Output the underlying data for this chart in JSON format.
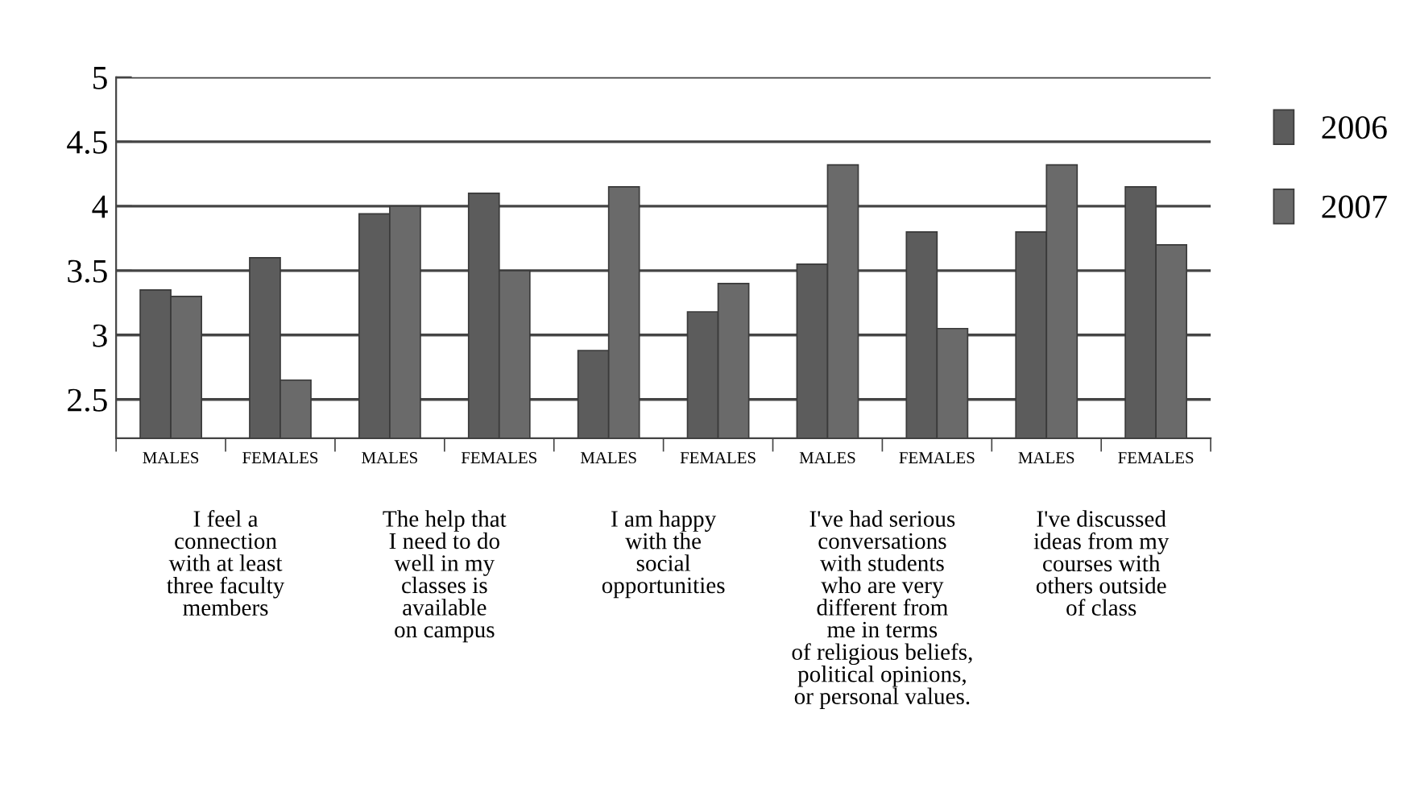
{
  "chart_data": {
    "type": "bar",
    "categories": [
      "MALES",
      "FEMALES",
      "MALES",
      "FEMALES",
      "MALES",
      "FEMALES",
      "MALES",
      "FEMALES",
      "MALES",
      "FEMALES"
    ],
    "series": [
      {
        "name": "2006",
        "color": "#5c5c5c",
        "values": [
          3.35,
          3.6,
          3.94,
          4.1,
          2.88,
          3.18,
          3.55,
          3.8,
          3.8,
          4.15
        ]
      },
      {
        "name": "2007",
        "color": "#6a6a6a",
        "values": [
          3.3,
          2.65,
          4.0,
          3.5,
          4.15,
          3.4,
          4.32,
          3.05,
          4.32,
          3.7
        ]
      }
    ],
    "ylim": [
      2.2,
      5
    ],
    "yticks": [
      2.5,
      3,
      3.5,
      4,
      4.5,
      5
    ],
    "grid": "y",
    "legend": "right",
    "annotations": [
      "I feel a\nconnection\nwith at least\nthree faculty\nmembers",
      "The help that\nI need to do\nwell in my\nclasses is\navailable\non campus",
      "I am happy\nwith the\nsocial\nopportunities",
      "I've had serious\nconversations\nwith students\nwho are very\ndifferent from\nme in terms\nof religious beliefs,\npolitical opinions,\nor personal values.",
      "I've discussed\nideas from my\ncourses with\nothers outside\nof class"
    ]
  }
}
